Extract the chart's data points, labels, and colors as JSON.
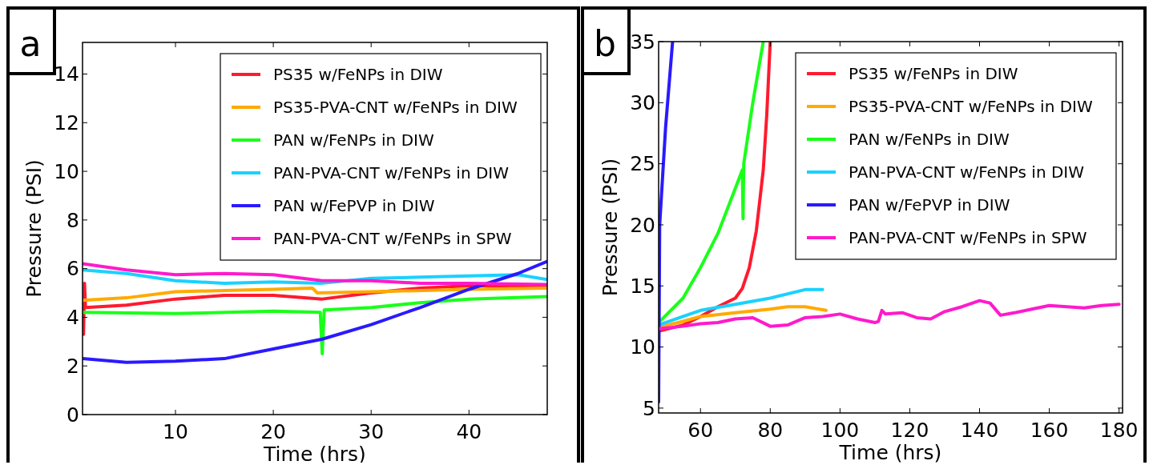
{
  "chart_data": [
    {
      "type": "line",
      "annotations": [
        "a"
      ],
      "xlabel": "Time  (hrs)",
      "ylabel": "Pressure  (PSI)",
      "xlim": [
        0.5,
        48
      ],
      "ylim": [
        0,
        15.3
      ],
      "xticks": [
        10,
        20,
        30,
        40
      ],
      "yticks": [
        0,
        2,
        4,
        6,
        8,
        10,
        12,
        14
      ],
      "legend": "top right",
      "grid": false,
      "line_style": "solid",
      "series": [
        {
          "name": "PS35 w/FeNPs in DIW",
          "color": "#ff1a2e",
          "x": [
            0.5,
            0.6,
            0.7,
            0.8,
            5,
            10,
            15,
            20,
            25,
            30,
            35,
            40,
            48
          ],
          "values": [
            4.5,
            3.3,
            5.4,
            4.4,
            4.5,
            4.75,
            4.9,
            4.9,
            4.75,
            5.0,
            5.2,
            5.3,
            5.3
          ]
        },
        {
          "name": "PS35-PVA-CNT w/FeNPs in DIW",
          "color": "#ffaa00",
          "x": [
            0.5,
            5,
            10,
            15,
            20,
            24,
            24.5,
            30,
            40,
            48
          ],
          "values": [
            4.7,
            4.8,
            5.05,
            5.1,
            5.15,
            5.2,
            5.0,
            5.05,
            5.15,
            5.2
          ]
        },
        {
          "name": "PAN w/FeNPs in DIW",
          "color": "#1aff1a",
          "x": [
            0.5,
            10,
            20,
            24.8,
            25,
            25.2,
            30,
            35,
            40,
            48
          ],
          "values": [
            4.2,
            4.15,
            4.25,
            4.2,
            2.5,
            4.3,
            4.4,
            4.6,
            4.75,
            4.85
          ]
        },
        {
          "name": "PAN-PVA-CNT w/FeNPs in DIW",
          "color": "#1ad1ff",
          "x": [
            0.5,
            5,
            10,
            15,
            20,
            25,
            30,
            35,
            40,
            45,
            48
          ],
          "values": [
            5.95,
            5.8,
            5.5,
            5.4,
            5.45,
            5.4,
            5.6,
            5.65,
            5.7,
            5.75,
            5.55
          ]
        },
        {
          "name": "PAN w/FePVP in DIW",
          "color": "#2a1aff",
          "x": [
            0.5,
            5,
            10,
            15,
            20,
            25,
            30,
            35,
            40,
            45,
            48
          ],
          "values": [
            2.3,
            2.15,
            2.2,
            2.3,
            2.7,
            3.1,
            3.7,
            4.4,
            5.15,
            5.8,
            6.3
          ]
        },
        {
          "name": "PAN-PVA-CNT w/FeNPs in SPW",
          "color": "#ff1acb",
          "x": [
            0.5,
            5,
            10,
            15,
            20,
            25,
            30,
            35,
            40,
            48
          ],
          "values": [
            6.2,
            5.95,
            5.75,
            5.8,
            5.75,
            5.5,
            5.5,
            5.4,
            5.4,
            5.35
          ]
        }
      ]
    },
    {
      "type": "line",
      "annotations": [
        "b"
      ],
      "xlabel": "Time  (hrs)",
      "ylabel": "Pressure  (PSI)",
      "xlim": [
        48,
        181
      ],
      "ylim": [
        4.6,
        35
      ],
      "xticks": [
        60,
        80,
        100,
        120,
        140,
        160,
        180
      ],
      "yticks": [
        5,
        10,
        15,
        20,
        25,
        30,
        35
      ],
      "legend": "top right",
      "grid": false,
      "line_style": "solid",
      "series": [
        {
          "name": "PS35 w/FeNPs in DIW",
          "color": "#ff1a2e",
          "x": [
            48,
            55,
            60,
            65,
            70,
            72,
            74,
            76,
            78,
            79,
            80
          ],
          "values": [
            11.3,
            11.8,
            12.5,
            13.3,
            14.0,
            14.8,
            16.5,
            19.5,
            24.5,
            29,
            35
          ]
        },
        {
          "name": "PS35-PVA-CNT w/FeNPs in DIW",
          "color": "#ffaa00",
          "x": [
            48,
            55,
            60,
            70,
            80,
            85,
            90,
            96
          ],
          "values": [
            11.6,
            12.1,
            12.5,
            12.8,
            13.1,
            13.3,
            13.3,
            13.0
          ]
        },
        {
          "name": "PAN w/FeNPs in DIW",
          "color": "#1aff1a",
          "x": [
            48,
            55,
            60,
            65,
            70,
            72,
            72.2,
            72.4,
            75,
            78
          ],
          "values": [
            12,
            14,
            16.5,
            19.3,
            23,
            24.5,
            20.5,
            25,
            30,
            35
          ]
        },
        {
          "name": "PAN-PVA-CNT w/FeNPs in DIW",
          "color": "#1ad1ff",
          "x": [
            48,
            55,
            60,
            70,
            80,
            90,
            95
          ],
          "values": [
            11.8,
            12.5,
            13,
            13.5,
            14,
            14.7,
            14.7
          ]
        },
        {
          "name": "PAN w/FePVP in DIW",
          "color": "#2a1aff",
          "x": [
            48,
            48.3,
            50,
            52
          ],
          "values": [
            5.5,
            20,
            28,
            35
          ]
        },
        {
          "name": "PAN-PVA-CNT w/FeNPs in SPW",
          "color": "#ff1acb",
          "x": [
            48,
            55,
            60,
            65,
            70,
            75,
            80,
            85,
            90,
            95,
            100,
            105,
            110,
            111,
            112,
            113,
            118,
            122,
            126,
            130,
            135,
            140,
            143,
            146,
            150,
            155,
            160,
            165,
            170,
            175,
            180
          ],
          "values": [
            11.5,
            11.7,
            11.9,
            12,
            12.3,
            12.4,
            11.7,
            11.8,
            12.4,
            12.5,
            12.7,
            12.3,
            12.0,
            12.1,
            13.0,
            12.7,
            12.8,
            12.4,
            12.3,
            12.9,
            13.3,
            13.8,
            13.6,
            12.6,
            12.8,
            13.1,
            13.4,
            13.3,
            13.2,
            13.4,
            13.5
          ]
        }
      ]
    }
  ]
}
